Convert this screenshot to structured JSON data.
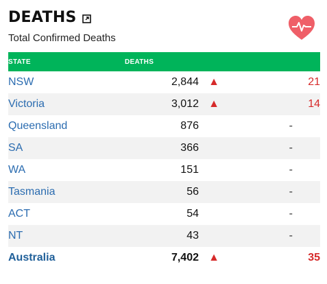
{
  "header": {
    "title": "DEATHS",
    "subtitle": "Total Confirmed Deaths",
    "expand_icon": "external-link-icon",
    "heart_icon": "heart-pulse-icon",
    "heart_color": "#ef5f68"
  },
  "table": {
    "columns": [
      "STATE",
      "DEATHS"
    ],
    "rows": [
      {
        "state": "NSW",
        "deaths": "2,844",
        "arrow": "▲",
        "change": "21"
      },
      {
        "state": "Victoria",
        "deaths": "3,012",
        "arrow": "▲",
        "change": "14"
      },
      {
        "state": "Queensland",
        "deaths": "876",
        "arrow": "",
        "change": "-"
      },
      {
        "state": "SA",
        "deaths": "366",
        "arrow": "",
        "change": "-"
      },
      {
        "state": "WA",
        "deaths": "151",
        "arrow": "",
        "change": "-"
      },
      {
        "state": "Tasmania",
        "deaths": "56",
        "arrow": "",
        "change": "-"
      },
      {
        "state": "ACT",
        "deaths": "54",
        "arrow": "",
        "change": "-"
      },
      {
        "state": "NT",
        "deaths": "43",
        "arrow": "",
        "change": "-"
      }
    ],
    "total": {
      "state": "Australia",
      "deaths": "7,402",
      "arrow": "▲",
      "change": "35"
    }
  },
  "colors": {
    "header_green": "#00b45a",
    "state_blue": "#2b6cb0",
    "increase_red": "#d62a2a"
  }
}
